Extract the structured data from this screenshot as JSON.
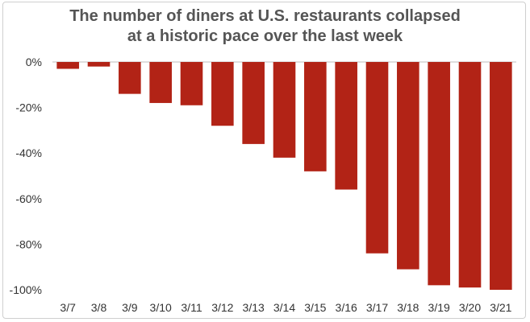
{
  "title_lines": [
    "The number of diners at U.S. restaurants collapsed",
    "at a historic pace over the last week"
  ],
  "chart_data": {
    "type": "bar",
    "title": "The number of diners at U.S. restaurants collapsed at a historic pace over the last week",
    "categories": [
      "3/7",
      "3/8",
      "3/9",
      "3/10",
      "3/11",
      "3/12",
      "3/13",
      "3/14",
      "3/15",
      "3/16",
      "3/17",
      "3/18",
      "3/19",
      "3/20",
      "3/21"
    ],
    "values": [
      -3,
      -2,
      -14,
      -18,
      -19,
      -28,
      -36,
      -42,
      -48,
      -56,
      -84,
      -91,
      -98,
      -99,
      -100
    ],
    "yticks": [
      "0%",
      "-20%",
      "-40%",
      "-60%",
      "-80%",
      "-100%"
    ],
    "ytick_values": [
      0,
      -20,
      -40,
      -60,
      -80,
      -100
    ],
    "ylim": [
      -100,
      0
    ],
    "xlabel": "",
    "ylabel": "",
    "grid": false,
    "legend": "none",
    "bar_color": "#b22316",
    "axis_color": "#bdbdbd"
  }
}
